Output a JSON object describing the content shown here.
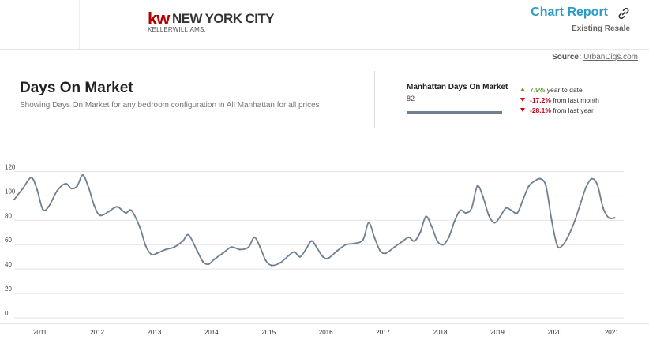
{
  "header": {
    "logo_mark": "kw",
    "logo_city": "NEW YORK CITY",
    "logo_text": "KELLERWILLIAMS.",
    "report_title": "Chart Report",
    "report_subtitle": "Existing Resale",
    "source_label": "Source:",
    "source_name": "UrbanDigs.com"
  },
  "panel": {
    "title": "Days On Market",
    "subtitle": "Showing Days On Market for any bedroom configuration in All Manhattan for all prices"
  },
  "stat": {
    "name": "Manhattan Days On Market",
    "value": "82",
    "changes": [
      {
        "direction": "up",
        "pct": "7.9%",
        "text": "year to date"
      },
      {
        "direction": "down",
        "pct": "-17.2%",
        "text": "from last month"
      },
      {
        "direction": "down",
        "pct": "-28.1%",
        "text": "from last year"
      }
    ]
  },
  "colors": {
    "line": "#6f8191",
    "up": "#5aa02c",
    "down": "#d0021b",
    "title_blue": "#2a9bc8",
    "brand_red": "#b40101"
  },
  "chart_data": {
    "type": "line",
    "title": "",
    "xlabel": "",
    "ylabel": "",
    "ylim": [
      0,
      130
    ],
    "yticks": [
      0,
      20,
      40,
      60,
      80,
      100,
      120
    ],
    "xlim": [
      2010.55,
      2021.1
    ],
    "xticks": [
      2011,
      2012,
      2013,
      2014,
      2015,
      2016,
      2017,
      2018,
      2019,
      2020,
      2021
    ],
    "grid": true,
    "series": [
      {
        "name": "",
        "x": [
          2010.55,
          2010.7,
          2010.85,
          2010.95,
          2011.05,
          2011.15,
          2011.3,
          2011.45,
          2011.55,
          2011.65,
          2011.75,
          2011.85,
          2011.95,
          2012.05,
          2012.2,
          2012.35,
          2012.5,
          2012.6,
          2012.75,
          2012.85,
          2012.95,
          2013.05,
          2013.2,
          2013.35,
          2013.5,
          2013.6,
          2013.75,
          2013.85,
          2013.95,
          2014.05,
          2014.2,
          2014.35,
          2014.5,
          2014.65,
          2014.75,
          2014.85,
          2014.95,
          2015.05,
          2015.2,
          2015.35,
          2015.45,
          2015.55,
          2015.65,
          2015.75,
          2015.85,
          2015.95,
          2016.05,
          2016.2,
          2016.35,
          2016.5,
          2016.65,
          2016.75,
          2016.85,
          2016.95,
          2017.05,
          2017.2,
          2017.35,
          2017.45,
          2017.55,
          2017.65,
          2017.75,
          2017.85,
          2017.95,
          2018.05,
          2018.15,
          2018.25,
          2018.35,
          2018.45,
          2018.55,
          2018.65,
          2018.75,
          2018.85,
          2018.95,
          2019.05,
          2019.15,
          2019.25,
          2019.35,
          2019.45,
          2019.55,
          2019.65,
          2019.75,
          2019.85,
          2019.95,
          2020.05,
          2020.15,
          2020.25,
          2020.35,
          2020.45,
          2020.55,
          2020.65,
          2020.75,
          2020.85,
          2020.95,
          2021.05
        ],
        "y": [
          97,
          106,
          115,
          105,
          89,
          91,
          104,
          110,
          106,
          108,
          117,
          107,
          92,
          84,
          87,
          91,
          86,
          88,
          74,
          59,
          52,
          53,
          56,
          58,
          63,
          68,
          55,
          46,
          44,
          48,
          53,
          58,
          56,
          58,
          66,
          58,
          47,
          43,
          45,
          51,
          54,
          50,
          56,
          63,
          57,
          50,
          49,
          55,
          60,
          61,
          64,
          78,
          66,
          55,
          53,
          58,
          63,
          66,
          63,
          70,
          83,
          75,
          63,
          60,
          66,
          79,
          88,
          86,
          90,
          108,
          99,
          84,
          78,
          83,
          90,
          88,
          86,
          97,
          108,
          112,
          114,
          108,
          80,
          59,
          60,
          68,
          79,
          93,
          107,
          114,
          109,
          90,
          82,
          82
        ],
        "y_note": ""
      }
    ]
  }
}
